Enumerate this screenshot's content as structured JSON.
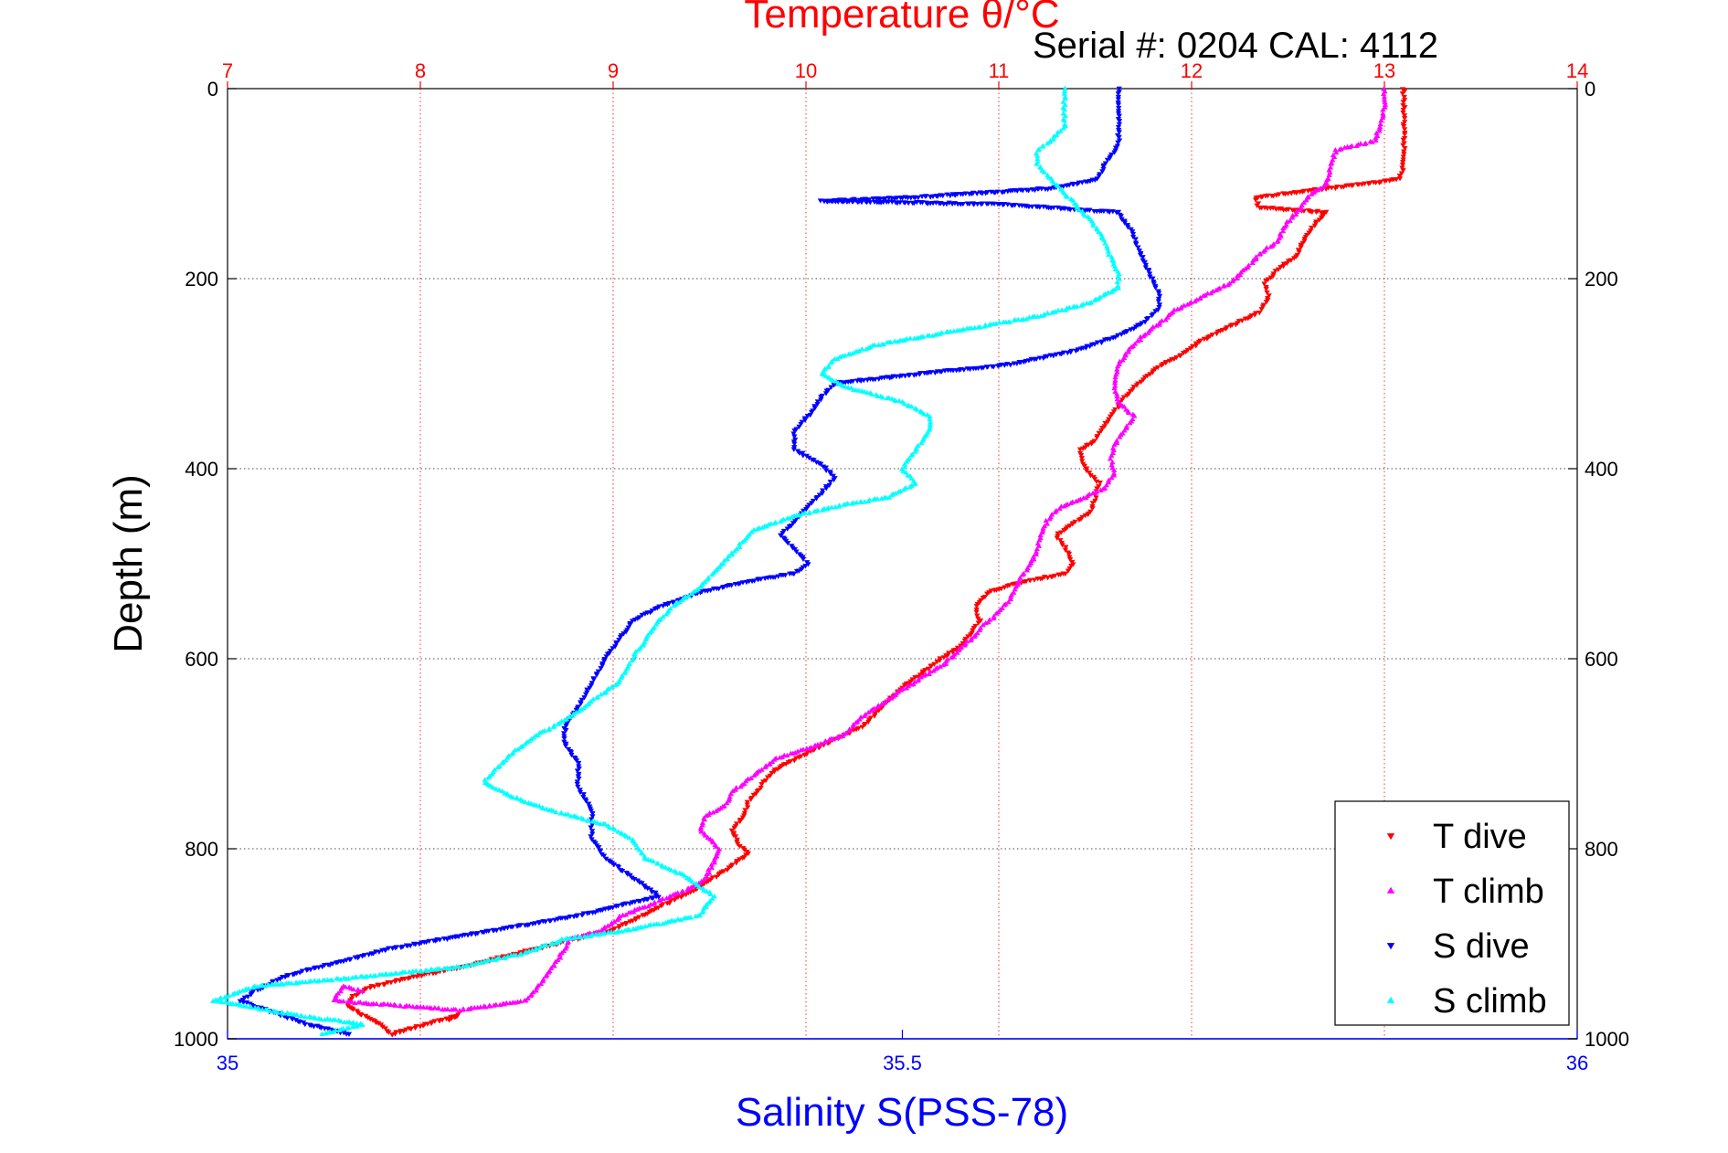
{
  "chart_data": {
    "type": "scatter",
    "title": "Temperature θ/°C",
    "subtitle": "Serial #: 0204  CAL: 4112",
    "ylabel": "Depth (m)",
    "xlabel": "Salinity S(PSS-78)",
    "y_axis": {
      "lim": [
        0,
        1000
      ],
      "reversed": true,
      "ticks": [
        0,
        200,
        400,
        600,
        800,
        1000
      ]
    },
    "x_top": {
      "label": "Temperature θ/°C",
      "lim": [
        7,
        14
      ],
      "ticks": [
        7,
        8,
        9,
        10,
        11,
        12,
        13,
        14
      ],
      "color": "#ff0000"
    },
    "x_bottom": {
      "label": "Salinity S(PSS-78)",
      "lim": [
        35,
        36
      ],
      "ticks": [
        35,
        35.5,
        36
      ],
      "color": "#0000ff"
    },
    "grid": true,
    "legend_position": "bottom-right",
    "series": [
      {
        "name": "T dive",
        "axis": "temperature",
        "color": "#ff0000",
        "marker": "triangle-down",
        "points": [
          [
            13.1,
            0
          ],
          [
            13.1,
            20
          ],
          [
            13.1,
            40
          ],
          [
            13.1,
            60
          ],
          [
            13.1,
            80
          ],
          [
            13.08,
            95
          ],
          [
            12.9,
            100
          ],
          [
            12.7,
            105
          ],
          [
            12.5,
            110
          ],
          [
            12.33,
            115
          ],
          [
            12.35,
            125
          ],
          [
            12.7,
            130
          ],
          [
            12.65,
            140
          ],
          [
            12.58,
            160
          ],
          [
            12.55,
            175
          ],
          [
            12.45,
            190
          ],
          [
            12.38,
            205
          ],
          [
            12.4,
            220
          ],
          [
            12.35,
            235
          ],
          [
            12.2,
            250
          ],
          [
            12.05,
            265
          ],
          [
            11.95,
            280
          ],
          [
            11.85,
            290
          ],
          [
            11.78,
            300
          ],
          [
            11.72,
            310
          ],
          [
            11.65,
            325
          ],
          [
            11.6,
            340
          ],
          [
            11.55,
            355
          ],
          [
            11.5,
            370
          ],
          [
            11.42,
            380
          ],
          [
            11.45,
            400
          ],
          [
            11.52,
            415
          ],
          [
            11.5,
            430
          ],
          [
            11.48,
            445
          ],
          [
            11.4,
            455
          ],
          [
            11.3,
            470
          ],
          [
            11.35,
            485
          ],
          [
            11.38,
            500
          ],
          [
            11.35,
            510
          ],
          [
            11.1,
            520
          ],
          [
            10.95,
            530
          ],
          [
            10.88,
            545
          ],
          [
            10.9,
            560
          ],
          [
            10.85,
            575
          ],
          [
            10.78,
            590
          ],
          [
            10.7,
            600
          ],
          [
            10.6,
            615
          ],
          [
            10.5,
            630
          ],
          [
            10.42,
            645
          ],
          [
            10.35,
            660
          ],
          [
            10.3,
            670
          ],
          [
            10.2,
            680
          ],
          [
            10.1,
            690
          ],
          [
            10.0,
            700
          ],
          [
            9.9,
            710
          ],
          [
            9.82,
            720
          ],
          [
            9.78,
            730
          ],
          [
            9.75,
            740
          ],
          [
            9.7,
            750
          ],
          [
            9.68,
            765
          ],
          [
            9.62,
            780
          ],
          [
            9.65,
            795
          ],
          [
            9.7,
            805
          ],
          [
            9.6,
            820
          ],
          [
            9.45,
            840
          ],
          [
            9.3,
            855
          ],
          [
            9.15,
            870
          ],
          [
            9.0,
            885
          ],
          [
            8.8,
            895
          ],
          [
            8.6,
            905
          ],
          [
            8.4,
            915
          ],
          [
            8.2,
            925
          ],
          [
            7.95,
            935
          ],
          [
            7.75,
            945
          ],
          [
            7.65,
            955
          ],
          [
            7.62,
            965
          ],
          [
            7.7,
            975
          ],
          [
            7.8,
            985
          ],
          [
            7.85,
            995
          ],
          [
            8.2,
            975
          ],
          [
            8.15,
            980
          ]
        ]
      },
      {
        "name": "T climb",
        "axis": "temperature",
        "color": "#ff00ff",
        "marker": "triangle-up",
        "points": [
          [
            13.0,
            0
          ],
          [
            13.0,
            20
          ],
          [
            12.98,
            40
          ],
          [
            12.95,
            55
          ],
          [
            12.75,
            65
          ],
          [
            12.72,
            80
          ],
          [
            12.7,
            100
          ],
          [
            12.6,
            115
          ],
          [
            12.55,
            130
          ],
          [
            12.48,
            145
          ],
          [
            12.45,
            160
          ],
          [
            12.35,
            175
          ],
          [
            12.28,
            190
          ],
          [
            12.2,
            205
          ],
          [
            12.05,
            220
          ],
          [
            11.9,
            235
          ],
          [
            11.85,
            245
          ],
          [
            11.75,
            260
          ],
          [
            11.68,
            275
          ],
          [
            11.62,
            290
          ],
          [
            11.6,
            310
          ],
          [
            11.62,
            330
          ],
          [
            11.7,
            345
          ],
          [
            11.65,
            360
          ],
          [
            11.6,
            375
          ],
          [
            11.58,
            390
          ],
          [
            11.6,
            405
          ],
          [
            11.55,
            420
          ],
          [
            11.45,
            430
          ],
          [
            11.32,
            440
          ],
          [
            11.25,
            455
          ],
          [
            11.22,
            470
          ],
          [
            11.2,
            485
          ],
          [
            11.18,
            495
          ],
          [
            11.15,
            505
          ],
          [
            11.1,
            520
          ],
          [
            11.05,
            540
          ],
          [
            10.98,
            555
          ],
          [
            10.92,
            565
          ],
          [
            10.88,
            575
          ],
          [
            10.8,
            590
          ],
          [
            10.72,
            605
          ],
          [
            10.6,
            620
          ],
          [
            10.45,
            640
          ],
          [
            10.3,
            660
          ],
          [
            10.2,
            680
          ],
          [
            10.0,
            695
          ],
          [
            9.85,
            705
          ],
          [
            9.75,
            720
          ],
          [
            9.62,
            740
          ],
          [
            9.58,
            755
          ],
          [
            9.48,
            765
          ],
          [
            9.45,
            780
          ],
          [
            9.5,
            790
          ],
          [
            9.55,
            800
          ],
          [
            9.52,
            815
          ],
          [
            9.48,
            830
          ],
          [
            9.42,
            840
          ],
          [
            9.3,
            850
          ],
          [
            9.18,
            860
          ],
          [
            9.05,
            870
          ],
          [
            8.95,
            885
          ],
          [
            8.78,
            895
          ],
          [
            8.72,
            915
          ],
          [
            8.65,
            935
          ],
          [
            8.55,
            960
          ],
          [
            8.2,
            970
          ],
          [
            7.55,
            960
          ],
          [
            7.6,
            945
          ],
          [
            7.7,
            950
          ]
        ]
      },
      {
        "name": "S dive",
        "axis": "salinity",
        "color": "#0000ff",
        "marker": "triangle-down",
        "points": [
          [
            35.66,
            0
          ],
          [
            35.66,
            20
          ],
          [
            35.66,
            40
          ],
          [
            35.66,
            60
          ],
          [
            35.65,
            80
          ],
          [
            35.645,
            95
          ],
          [
            35.61,
            105
          ],
          [
            35.5,
            115
          ],
          [
            35.44,
            118
          ],
          [
            35.58,
            122
          ],
          [
            35.66,
            130
          ],
          [
            35.67,
            150
          ],
          [
            35.675,
            170
          ],
          [
            35.68,
            185
          ],
          [
            35.685,
            200
          ],
          [
            35.69,
            215
          ],
          [
            35.69,
            230
          ],
          [
            35.68,
            245
          ],
          [
            35.66,
            260
          ],
          [
            35.63,
            275
          ],
          [
            35.58,
            290
          ],
          [
            35.5,
            302
          ],
          [
            35.45,
            310
          ],
          [
            35.44,
            325
          ],
          [
            35.43,
            345
          ],
          [
            35.42,
            360
          ],
          [
            35.42,
            380
          ],
          [
            35.44,
            395
          ],
          [
            35.45,
            410
          ],
          [
            35.44,
            425
          ],
          [
            35.43,
            440
          ],
          [
            35.42,
            455
          ],
          [
            35.41,
            470
          ],
          [
            35.42,
            485
          ],
          [
            35.43,
            500
          ],
          [
            35.42,
            510
          ],
          [
            35.38,
            520
          ],
          [
            35.35,
            530
          ],
          [
            35.32,
            545
          ],
          [
            35.3,
            560
          ],
          [
            35.29,
            580
          ],
          [
            35.28,
            600
          ],
          [
            35.27,
            625
          ],
          [
            35.26,
            650
          ],
          [
            35.25,
            670
          ],
          [
            35.25,
            690
          ],
          [
            35.26,
            710
          ],
          [
            35.26,
            735
          ],
          [
            35.27,
            760
          ],
          [
            35.27,
            790
          ],
          [
            35.28,
            810
          ],
          [
            35.3,
            830
          ],
          [
            35.32,
            850
          ],
          [
            35.26,
            870
          ],
          [
            35.18,
            890
          ],
          [
            35.12,
            905
          ],
          [
            35.08,
            920
          ],
          [
            35.04,
            935
          ],
          [
            35.02,
            950
          ],
          [
            35.01,
            960
          ],
          [
            35.03,
            970
          ],
          [
            35.06,
            985
          ],
          [
            35.09,
            995
          ]
        ]
      },
      {
        "name": "S climb",
        "axis": "salinity",
        "color": "#00ffff",
        "marker": "triangle-up",
        "points": [
          [
            35.62,
            0
          ],
          [
            35.62,
            20
          ],
          [
            35.62,
            40
          ],
          [
            35.61,
            55
          ],
          [
            35.6,
            65
          ],
          [
            35.6,
            80
          ],
          [
            35.61,
            95
          ],
          [
            35.62,
            110
          ],
          [
            35.63,
            125
          ],
          [
            35.64,
            140
          ],
          [
            35.65,
            160
          ],
          [
            35.655,
            180
          ],
          [
            35.66,
            195
          ],
          [
            35.66,
            210
          ],
          [
            35.64,
            225
          ],
          [
            35.6,
            240
          ],
          [
            35.56,
            250
          ],
          [
            35.52,
            260
          ],
          [
            35.48,
            270
          ],
          [
            35.45,
            285
          ],
          [
            35.44,
            300
          ],
          [
            35.46,
            315
          ],
          [
            35.5,
            330
          ],
          [
            35.52,
            345
          ],
          [
            35.52,
            360
          ],
          [
            35.51,
            380
          ],
          [
            35.5,
            400
          ],
          [
            35.51,
            415
          ],
          [
            35.49,
            430
          ],
          [
            35.45,
            440
          ],
          [
            35.42,
            450
          ],
          [
            35.39,
            465
          ],
          [
            35.38,
            480
          ],
          [
            35.37,
            495
          ],
          [
            35.36,
            510
          ],
          [
            35.35,
            525
          ],
          [
            35.33,
            545
          ],
          [
            35.32,
            560
          ],
          [
            35.31,
            580
          ],
          [
            35.3,
            600
          ],
          [
            35.29,
            625
          ],
          [
            35.27,
            645
          ],
          [
            35.25,
            665
          ],
          [
            35.23,
            680
          ],
          [
            35.21,
            700
          ],
          [
            35.2,
            715
          ],
          [
            35.19,
            730
          ],
          [
            35.21,
            745
          ],
          [
            35.24,
            760
          ],
          [
            35.28,
            775
          ],
          [
            35.3,
            790
          ],
          [
            35.31,
            810
          ],
          [
            35.34,
            830
          ],
          [
            35.36,
            850
          ],
          [
            35.35,
            870
          ],
          [
            35.3,
            885
          ],
          [
            35.25,
            895
          ],
          [
            35.22,
            910
          ],
          [
            35.17,
            925
          ],
          [
            35.1,
            935
          ],
          [
            35.02,
            945
          ],
          [
            34.99,
            960
          ],
          [
            35.05,
            975
          ],
          [
            35.1,
            985
          ],
          [
            35.07,
            995
          ]
        ]
      }
    ]
  }
}
